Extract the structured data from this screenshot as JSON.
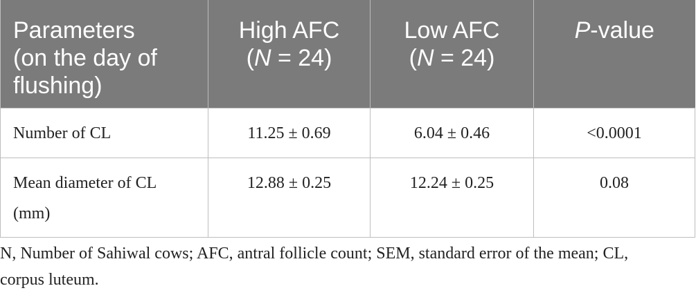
{
  "table": {
    "headers": {
      "parameters": [
        "Parameters",
        "(on the day of",
        "flushing)"
      ],
      "high": {
        "label": "High AFC",
        "n_prefix": "(",
        "n_italic": "N",
        "n_suffix": " = 24)"
      },
      "low": {
        "label": "Low AFC",
        "n_prefix": "(",
        "n_italic": "N",
        "n_suffix": " = 24)"
      },
      "pvalue": {
        "italic": "P",
        "rest": "-value"
      }
    },
    "rows": [
      {
        "parameter": "Number of CL",
        "high": "11.25 ± 0.69",
        "low": "6.04 ± 0.46",
        "p": "<0.0001"
      },
      {
        "parameter": "Mean diameter of CL",
        "parameter_line2": "(mm)",
        "high": "12.88 ± 0.25",
        "low": "12.24 ± 0.25",
        "p": "0.08"
      }
    ]
  },
  "footnote": {
    "line1": "N, Number of Sahiwal cows; AFC, antral follicle count; SEM, standard error of the mean; CL,",
    "line2": "corpus luteum."
  },
  "colors": {
    "header_bg": "#7b7b7b",
    "header_text": "#ffffff",
    "border": "#bdbdbd",
    "body_text": "#222222"
  }
}
